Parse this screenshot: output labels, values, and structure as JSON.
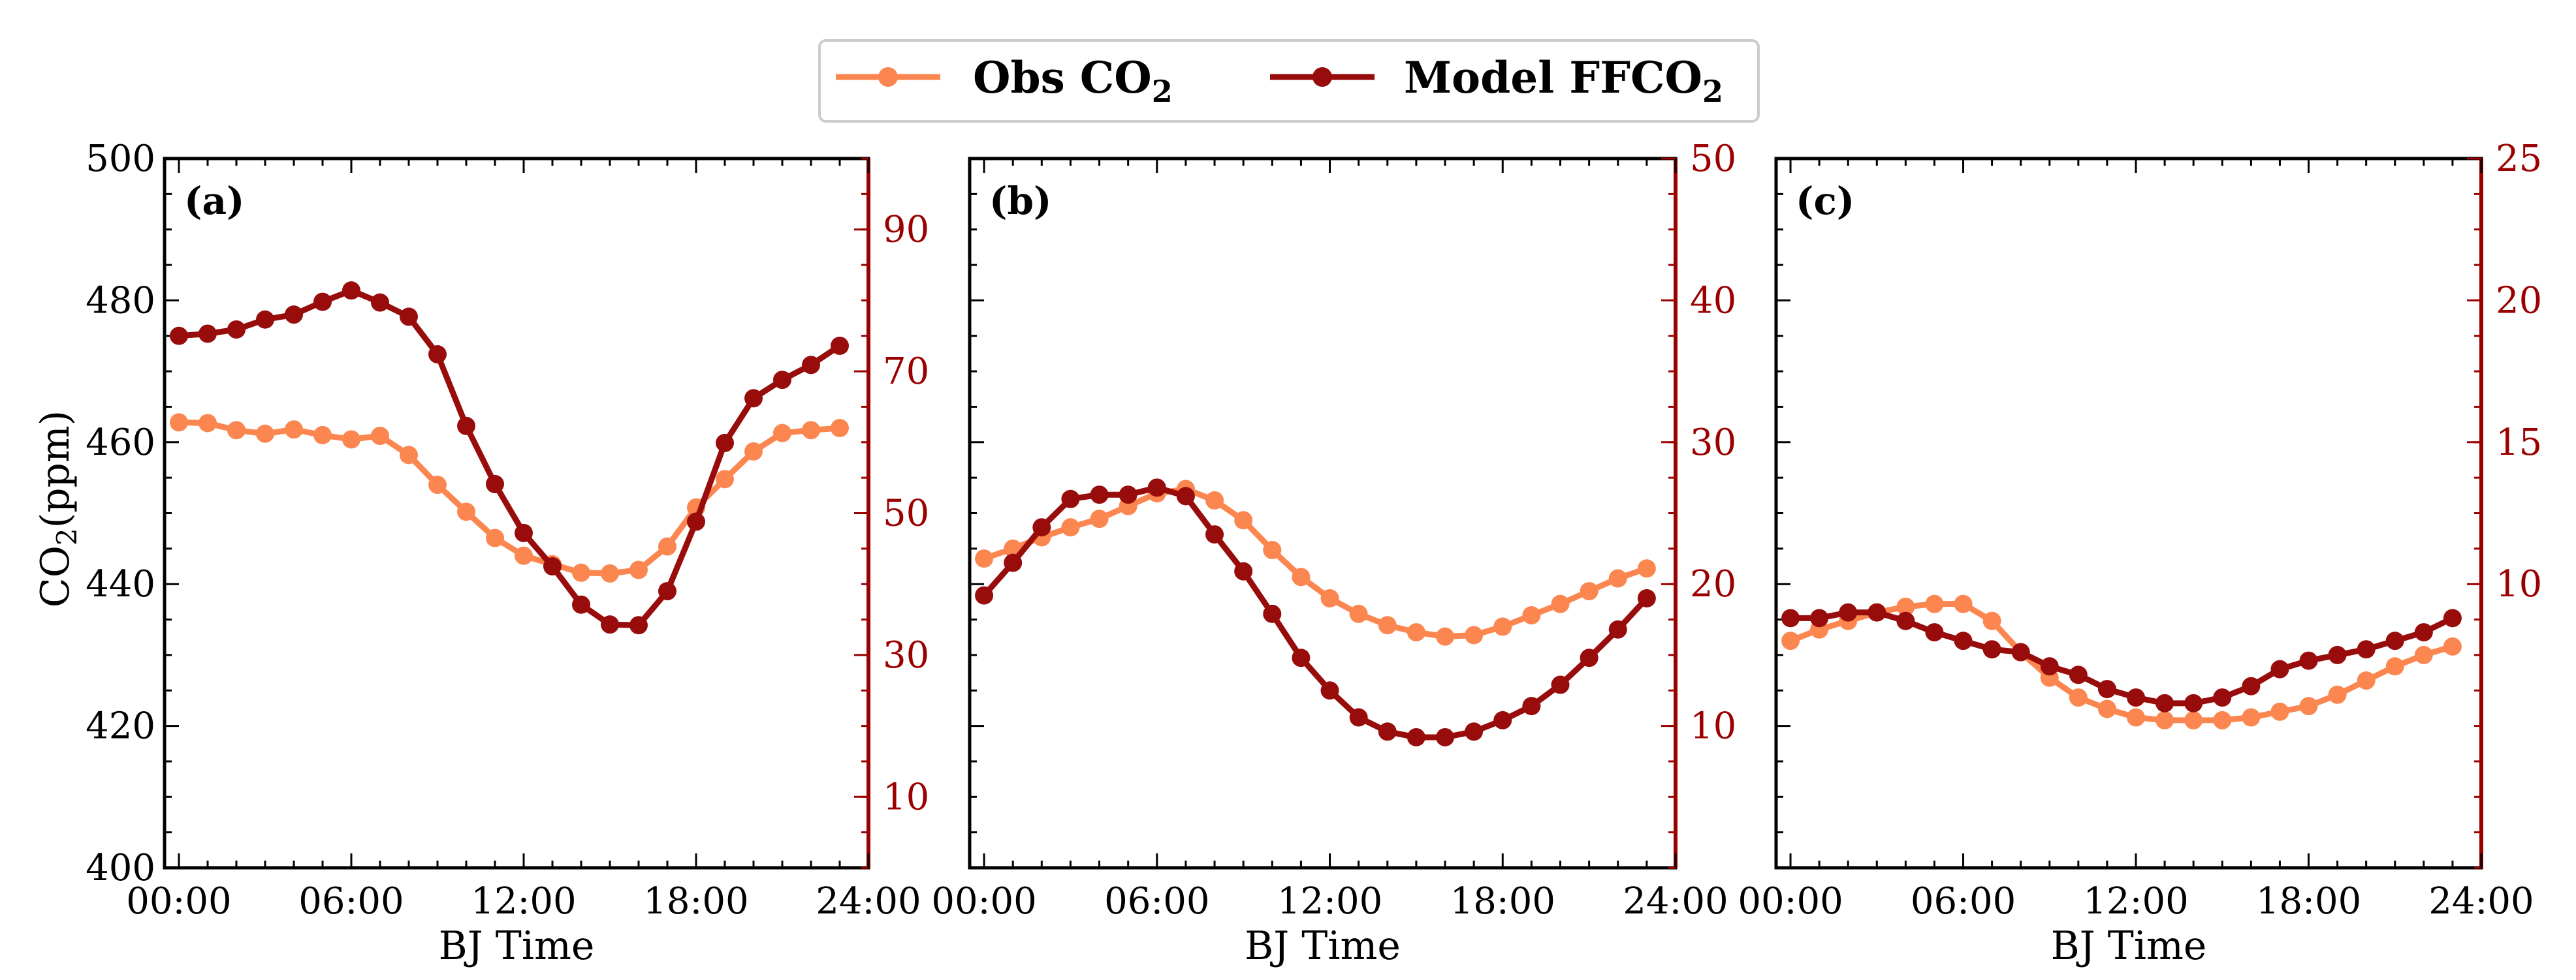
{
  "colors": {
    "obs": "#fb8650",
    "model": "#980c0c",
    "right_axis": "#9b0000",
    "axis": "#000000"
  },
  "legend": {
    "obs_label": "Obs CO",
    "obs_sub": "2",
    "model_label": "Model FFCO",
    "model_sub": "2"
  },
  "axes": {
    "left_label_main": "CO",
    "left_label_sub": "2",
    "left_label_tail": "(ppm)",
    "xlabel": "BJ Time",
    "left_ticks": [
      "400",
      "420",
      "440",
      "460",
      "480",
      "500"
    ],
    "x_ticks": [
      "00:00",
      "06:00",
      "12:00",
      "18:00",
      "24:00"
    ]
  },
  "chart_data": [
    {
      "type": "line",
      "panel": "(a)",
      "xlabel": "BJ Time",
      "ylabel": "CO2(ppm)",
      "x": [
        0,
        1,
        2,
        3,
        4,
        5,
        6,
        7,
        8,
        9,
        10,
        11,
        12,
        13,
        14,
        15,
        16,
        17,
        18,
        19,
        20,
        21,
        22,
        23
      ],
      "xlim": [
        -0.5,
        24
      ],
      "ylim_left": [
        400,
        500
      ],
      "ylim_right": [
        0,
        100
      ],
      "right_ticks": [
        10,
        30,
        50,
        70,
        90
      ],
      "right_tick_labels": [
        "10",
        "30",
        "50",
        "70",
        "90"
      ],
      "series": [
        {
          "name": "Obs CO2",
          "axis": "left",
          "values": [
            462.8,
            462.7,
            461.7,
            461.2,
            461.8,
            461.0,
            460.4,
            460.9,
            458.2,
            454.0,
            450.2,
            446.5,
            444.0,
            442.8,
            441.6,
            441.5,
            442.0,
            445.3,
            450.8,
            454.8,
            458.7,
            461.3,
            461.7,
            462.0
          ]
        },
        {
          "name": "Model FFCO2",
          "axis": "right",
          "values": [
            75.0,
            75.3,
            75.9,
            77.3,
            78.0,
            79.8,
            81.4,
            79.7,
            77.7,
            72.4,
            62.3,
            54.1,
            47.2,
            42.5,
            37.1,
            34.3,
            34.2,
            39.0,
            48.8,
            59.9,
            66.2,
            68.8,
            70.9,
            73.6
          ]
        }
      ]
    },
    {
      "type": "line",
      "panel": "(b)",
      "xlabel": "BJ Time",
      "x": [
        0,
        1,
        2,
        3,
        4,
        5,
        6,
        7,
        8,
        9,
        10,
        11,
        12,
        13,
        14,
        15,
        16,
        17,
        18,
        19,
        20,
        21,
        22,
        23
      ],
      "xlim": [
        -0.5,
        24
      ],
      "ylim_left": [
        400,
        500
      ],
      "ylim_right": [
        0,
        50
      ],
      "right_ticks": [
        10,
        20,
        30,
        40,
        50
      ],
      "right_tick_labels": [
        "10",
        "20",
        "30",
        "40",
        "50"
      ],
      "series": [
        {
          "name": "Obs CO2",
          "axis": "right",
          "values": [
            21.8,
            22.5,
            23.3,
            24.0,
            24.6,
            25.5,
            26.4,
            26.7,
            25.9,
            24.5,
            22.4,
            20.5,
            19.0,
            17.9,
            17.1,
            16.6,
            16.3,
            16.4,
            17.0,
            17.8,
            18.6,
            19.5,
            20.4,
            21.1
          ]
        },
        {
          "name": "Model FFCO2",
          "axis": "right",
          "values": [
            19.2,
            21.5,
            24.0,
            26.0,
            26.3,
            26.3,
            26.8,
            26.2,
            23.5,
            20.9,
            17.9,
            14.8,
            12.5,
            10.6,
            9.6,
            9.2,
            9.2,
            9.6,
            10.4,
            11.4,
            12.9,
            14.8,
            16.8,
            19.0
          ]
        }
      ]
    },
    {
      "type": "line",
      "panel": "(c)",
      "xlabel": "BJ Time",
      "x": [
        0,
        1,
        2,
        3,
        4,
        5,
        6,
        7,
        8,
        9,
        10,
        11,
        12,
        13,
        14,
        15,
        16,
        17,
        18,
        19,
        20,
        21,
        22,
        23
      ],
      "xlim": [
        -0.5,
        24
      ],
      "ylim_left": [
        400,
        500
      ],
      "ylim_right": [
        0,
        25
      ],
      "right_ticks": [
        10,
        15,
        20,
        25
      ],
      "right_tick_labels": [
        "10",
        "15",
        "20",
        "25"
      ],
      "series": [
        {
          "name": "Obs CO2",
          "axis": "right",
          "values": [
            8.0,
            8.4,
            8.7,
            9.0,
            9.2,
            9.3,
            9.3,
            8.7,
            7.6,
            6.7,
            6.0,
            5.6,
            5.3,
            5.2,
            5.2,
            5.2,
            5.3,
            5.5,
            5.7,
            6.1,
            6.6,
            7.1,
            7.5,
            7.8
          ]
        },
        {
          "name": "Model FFCO2",
          "axis": "right",
          "values": [
            8.8,
            8.8,
            9.0,
            9.0,
            8.7,
            8.3,
            8.0,
            7.7,
            7.6,
            7.1,
            6.8,
            6.3,
            6.0,
            5.8,
            5.8,
            6.0,
            6.4,
            7.0,
            7.3,
            7.5,
            7.7,
            8.0,
            8.3,
            8.8
          ]
        }
      ]
    }
  ]
}
